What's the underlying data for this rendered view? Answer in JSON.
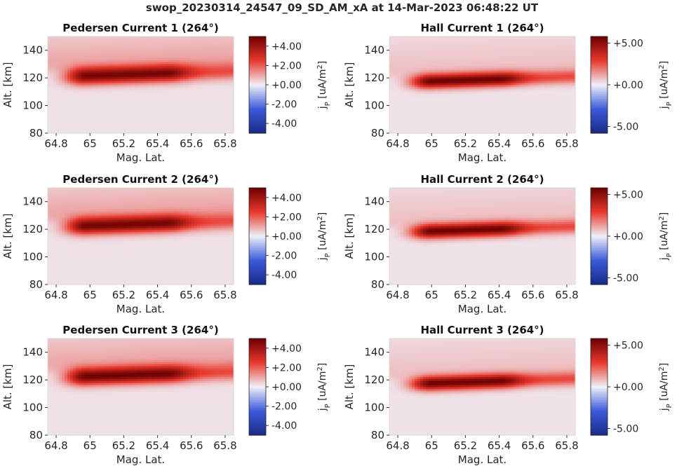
{
  "figure": {
    "suptitle": "swop_20230314_24547_09_SD_AM_xA at 14-Mar-2023 06:48:22 UT"
  },
  "colors": {
    "neg_dark": "#1a2a85",
    "neg": "#3b5bdb",
    "zero": "#f0f0f8",
    "pos": "#e8382c",
    "pos_dark": "#6b0000",
    "background_fill": "#efe0e2"
  },
  "chart_data": [
    {
      "type": "heatmap",
      "title": "Pedersen Current 1 (264°)",
      "xlabel": "Mag. Lat.",
      "ylabel": "Alt. [km]",
      "xlim": [
        64.75,
        65.85
      ],
      "ylim": [
        80,
        150
      ],
      "xticks": [
        "64.8",
        "65",
        "65.2",
        "65.4",
        "65.6",
        "65.8"
      ],
      "xtick_values": [
        64.8,
        65.0,
        65.2,
        65.4,
        65.6,
        65.8
      ],
      "yticks": [
        "80",
        "100",
        "120",
        "140"
      ],
      "ytick_values": [
        80,
        100,
        120,
        140
      ],
      "colorbar_label": "jP [uA/m2]",
      "clim": [
        -5,
        5
      ],
      "colorbar_ticks": [
        "+4.00",
        "+2.00",
        "+0.00",
        "-2.00",
        "-4.00"
      ],
      "colorbar_tick_values": [
        4,
        2,
        0,
        -2,
        -4
      ],
      "band": {
        "center_alt_km": 123,
        "width_km": 12,
        "peak_value": 4.6,
        "peak_lat_range": [
          64.98,
          65.45
        ],
        "background_value": 0.4,
        "upper_value": 0.9
      }
    },
    {
      "type": "heatmap",
      "title": "Hall Current 1 (264°)",
      "xlabel": "Mag. Lat.",
      "ylabel": "Alt. [km]",
      "xlim": [
        64.75,
        65.85
      ],
      "ylim": [
        80,
        150
      ],
      "xticks": [
        "64.8",
        "65",
        "65.2",
        "65.4",
        "65.6",
        "65.8"
      ],
      "xtick_values": [
        64.8,
        65.0,
        65.2,
        65.4,
        65.6,
        65.8
      ],
      "yticks": [
        "80",
        "100",
        "120",
        "140"
      ],
      "ytick_values": [
        80,
        100,
        120,
        140
      ],
      "colorbar_label": "jP [uA/m2]",
      "clim": [
        -5.8,
        5.8
      ],
      "colorbar_ticks": [
        "+5.00",
        "+0.00",
        "-5.00"
      ],
      "colorbar_tick_values": [
        5,
        0,
        -5
      ],
      "band": {
        "center_alt_km": 119,
        "width_km": 10,
        "peak_value": 5.5,
        "peak_lat_range": [
          65.0,
          65.4
        ],
        "background_value": 0.4,
        "upper_value": 0.6
      }
    },
    {
      "type": "heatmap",
      "title": "Pedersen Current 2 (264°)",
      "xlabel": "Mag. Lat.",
      "ylabel": "Alt. [km]",
      "xlim": [
        64.75,
        65.85
      ],
      "ylim": [
        80,
        150
      ],
      "xticks": [
        "64.8",
        "65",
        "65.2",
        "65.4",
        "65.6",
        "65.8"
      ],
      "xtick_values": [
        64.8,
        65.0,
        65.2,
        65.4,
        65.6,
        65.8
      ],
      "yticks": [
        "80",
        "100",
        "120",
        "140"
      ],
      "ytick_values": [
        80,
        100,
        120,
        140
      ],
      "colorbar_label": "jP [uA/m2]",
      "clim": [
        -5,
        5
      ],
      "colorbar_ticks": [
        "+4.00",
        "+2.00",
        "+0.00",
        "-2.00",
        "-4.00"
      ],
      "colorbar_tick_values": [
        4,
        2,
        0,
        -2,
        -4
      ],
      "band": {
        "center_alt_km": 124,
        "width_km": 12,
        "peak_value": 4.6,
        "peak_lat_range": [
          64.98,
          65.45
        ],
        "background_value": 0.4,
        "upper_value": 0.9
      }
    },
    {
      "type": "heatmap",
      "title": "Hall Current 2 (264°)",
      "xlabel": "Mag. Lat.",
      "ylabel": "Alt. [km]",
      "xlim": [
        64.75,
        65.85
      ],
      "ylim": [
        80,
        150
      ],
      "xticks": [
        "64.8",
        "65",
        "65.2",
        "65.4",
        "65.6",
        "65.8"
      ],
      "xtick_values": [
        64.8,
        65.0,
        65.2,
        65.4,
        65.6,
        65.8
      ],
      "yticks": [
        "80",
        "100",
        "120",
        "140"
      ],
      "ytick_values": [
        80,
        100,
        120,
        140
      ],
      "colorbar_label": "jP [uA/m2]",
      "clim": [
        -5.8,
        5.8
      ],
      "colorbar_ticks": [
        "+5.00",
        "+0.00",
        "-5.00"
      ],
      "colorbar_tick_values": [
        5,
        0,
        -5
      ],
      "band": {
        "center_alt_km": 120,
        "width_km": 10,
        "peak_value": 5.5,
        "peak_lat_range": [
          65.0,
          65.4
        ],
        "background_value": 0.4,
        "upper_value": 0.6
      }
    },
    {
      "type": "heatmap",
      "title": "Pedersen Current 3 (264°)",
      "xlabel": "Mag. Lat.",
      "ylabel": "Alt. [km]",
      "xlim": [
        64.75,
        65.85
      ],
      "ylim": [
        80,
        150
      ],
      "xticks": [
        "64.8",
        "65",
        "65.2",
        "65.4",
        "65.6",
        "65.8"
      ],
      "xtick_values": [
        64.8,
        65.0,
        65.2,
        65.4,
        65.6,
        65.8
      ],
      "yticks": [
        "80",
        "100",
        "120",
        "140"
      ],
      "ytick_values": [
        80,
        100,
        120,
        140
      ],
      "colorbar_label": "jP [uA/m2]",
      "clim": [
        -5,
        5
      ],
      "colorbar_ticks": [
        "+4.00",
        "+2.00",
        "+0.00",
        "-2.00",
        "-4.00"
      ],
      "colorbar_tick_values": [
        4,
        2,
        0,
        -2,
        -4
      ],
      "band": {
        "center_alt_km": 124,
        "width_km": 12,
        "peak_value": 4.7,
        "peak_lat_range": [
          64.98,
          65.45
        ],
        "background_value": 0.4,
        "upper_value": 0.9
      }
    },
    {
      "type": "heatmap",
      "title": "Hall Current 3 (264°)",
      "xlabel": "Mag. Lat.",
      "ylabel": "Alt. [km]",
      "xlim": [
        64.75,
        65.85
      ],
      "ylim": [
        80,
        150
      ],
      "xticks": [
        "64.8",
        "65",
        "65.2",
        "65.4",
        "65.6",
        "65.8"
      ],
      "xtick_values": [
        64.8,
        65.0,
        65.2,
        65.4,
        65.6,
        65.8
      ],
      "yticks": [
        "80",
        "100",
        "120",
        "140"
      ],
      "ytick_values": [
        80,
        100,
        120,
        140
      ],
      "colorbar_label": "jP [uA/m2]",
      "clim": [
        -5.8,
        5.8
      ],
      "colorbar_ticks": [
        "+5.00",
        "+0.00",
        "-5.00"
      ],
      "colorbar_tick_values": [
        5,
        0,
        -5
      ],
      "band": {
        "center_alt_km": 119,
        "width_km": 10,
        "peak_value": 5.5,
        "peak_lat_range": [
          65.0,
          65.4
        ],
        "background_value": 0.4,
        "upper_value": 0.6
      }
    }
  ]
}
